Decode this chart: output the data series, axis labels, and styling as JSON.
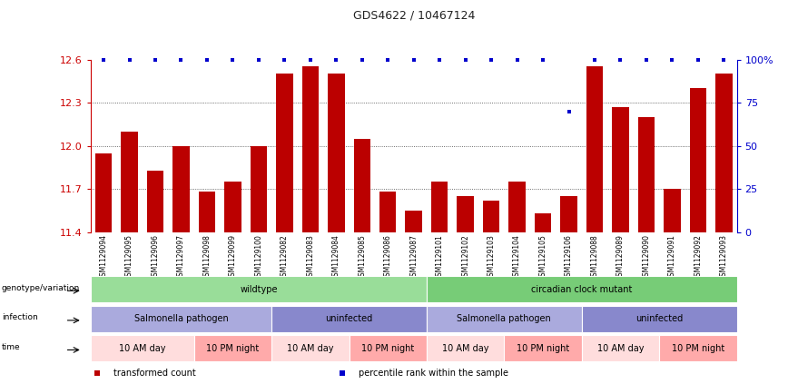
{
  "title": "GDS4622 / 10467124",
  "samples": [
    "GSM1129094",
    "GSM1129095",
    "GSM1129096",
    "GSM1129097",
    "GSM1129098",
    "GSM1129099",
    "GSM1129100",
    "GSM1129082",
    "GSM1129083",
    "GSM1129084",
    "GSM1129085",
    "GSM1129086",
    "GSM1129087",
    "GSM1129101",
    "GSM1129102",
    "GSM1129103",
    "GSM1129104",
    "GSM1129105",
    "GSM1129106",
    "GSM1129088",
    "GSM1129089",
    "GSM1129090",
    "GSM1129091",
    "GSM1129092",
    "GSM1129093"
  ],
  "bar_values": [
    11.95,
    12.1,
    11.83,
    12.0,
    11.68,
    11.75,
    12.0,
    12.5,
    12.55,
    12.5,
    12.05,
    11.68,
    11.55,
    11.75,
    11.65,
    11.62,
    11.75,
    11.53,
    11.65,
    12.55,
    12.27,
    12.2,
    11.7,
    12.4,
    12.5
  ],
  "percentile_values": [
    100,
    100,
    100,
    100,
    100,
    100,
    100,
    100,
    100,
    100,
    100,
    100,
    100,
    100,
    100,
    100,
    100,
    100,
    70,
    100,
    100,
    100,
    100,
    100,
    100
  ],
  "bar_color": "#bb0000",
  "percentile_color": "#0000cc",
  "ymin": 11.4,
  "ymax": 12.6,
  "yticks": [
    11.4,
    11.7,
    12.0,
    12.3,
    12.6
  ],
  "right_yticks": [
    0,
    25,
    50,
    75,
    100
  ],
  "right_ytick_labels": [
    "0",
    "25",
    "50",
    "75",
    "100%"
  ],
  "genotype_groups": [
    {
      "label": "wildtype",
      "start": 0,
      "end": 13,
      "color": "#99dd99"
    },
    {
      "label": "circadian clock mutant",
      "start": 13,
      "end": 25,
      "color": "#77cc77"
    }
  ],
  "infection_groups": [
    {
      "label": "Salmonella pathogen",
      "start": 0,
      "end": 7,
      "color": "#aaaadd"
    },
    {
      "label": "uninfected",
      "start": 7,
      "end": 13,
      "color": "#8888cc"
    },
    {
      "label": "Salmonella pathogen",
      "start": 13,
      "end": 19,
      "color": "#aaaadd"
    },
    {
      "label": "uninfected",
      "start": 19,
      "end": 25,
      "color": "#8888cc"
    }
  ],
  "time_groups": [
    {
      "label": "10 AM day",
      "start": 0,
      "end": 4,
      "color": "#ffdddd"
    },
    {
      "label": "10 PM night",
      "start": 4,
      "end": 7,
      "color": "#ffaaaa"
    },
    {
      "label": "10 AM day",
      "start": 7,
      "end": 10,
      "color": "#ffdddd"
    },
    {
      "label": "10 PM night",
      "start": 10,
      "end": 13,
      "color": "#ffaaaa"
    },
    {
      "label": "10 AM day",
      "start": 13,
      "end": 16,
      "color": "#ffdddd"
    },
    {
      "label": "10 PM night",
      "start": 16,
      "end": 19,
      "color": "#ffaaaa"
    },
    {
      "label": "10 AM day",
      "start": 19,
      "end": 22,
      "color": "#ffdddd"
    },
    {
      "label": "10 PM night",
      "start": 22,
      "end": 25,
      "color": "#ffaaaa"
    }
  ],
  "row_labels": [
    "genotype/variation",
    "infection",
    "time"
  ],
  "legend_items": [
    {
      "label": "transformed count",
      "color": "#bb0000"
    },
    {
      "label": "percentile rank within the sample",
      "color": "#0000cc"
    }
  ],
  "bg_color": "#ffffff",
  "grid_color": "#444444",
  "annotation_color": "#cc0000",
  "right_axis_color": "#0000cc",
  "xtick_bg": "#dddddd"
}
